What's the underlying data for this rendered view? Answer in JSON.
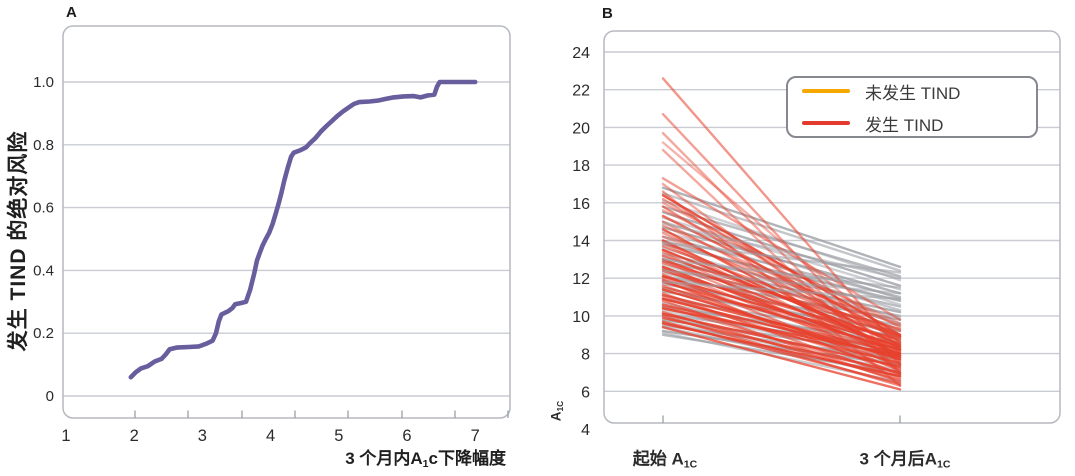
{
  "figure": {
    "panel_a_letter": "A",
    "panel_b_letter": "B"
  },
  "panel_a_text": {
    "ylabel": "发生 TIND 的绝对风险",
    "xlabel_parts": {
      "pre": "3 个月内A",
      "sub": "1",
      "post": "c下降幅度"
    }
  },
  "panel_b_text": {
    "ylabel_parts": {
      "pre": "A",
      "sub": "1C"
    },
    "cat1_parts": {
      "pre": "起始 A",
      "sub": "1C"
    },
    "cat2_parts": {
      "pre": "3 个月后A",
      "sub": "1C"
    }
  },
  "chart_data": [
    {
      "panel": "A",
      "type": "line",
      "title": "A",
      "xlabel": "3 个月内A1c下降幅度",
      "ylabel": "发生 TIND 的绝对风险",
      "xlim": [
        1,
        7.55
      ],
      "ylim": [
        0,
        1.12
      ],
      "x_ticks": [
        1,
        2,
        3,
        4,
        5,
        6,
        7
      ],
      "y_ticks": [
        0,
        0.2,
        0.4,
        0.6,
        0.8,
        1.0
      ],
      "grid": "horizontal",
      "line_color": "#685E9E",
      "points": [
        [
          1.95,
          0.06
        ],
        [
          2.02,
          0.075
        ],
        [
          2.1,
          0.088
        ],
        [
          2.2,
          0.095
        ],
        [
          2.3,
          0.11
        ],
        [
          2.4,
          0.118
        ],
        [
          2.46,
          0.132
        ],
        [
          2.52,
          0.149
        ],
        [
          2.62,
          0.154
        ],
        [
          2.8,
          0.156
        ],
        [
          2.95,
          0.158
        ],
        [
          3.05,
          0.166
        ],
        [
          3.15,
          0.176
        ],
        [
          3.2,
          0.2
        ],
        [
          3.24,
          0.238
        ],
        [
          3.28,
          0.26
        ],
        [
          3.38,
          0.27
        ],
        [
          3.44,
          0.28
        ],
        [
          3.48,
          0.292
        ],
        [
          3.56,
          0.296
        ],
        [
          3.64,
          0.3
        ],
        [
          3.7,
          0.338
        ],
        [
          3.76,
          0.39
        ],
        [
          3.8,
          0.432
        ],
        [
          3.84,
          0.455
        ],
        [
          3.88,
          0.478
        ],
        [
          3.93,
          0.5
        ],
        [
          3.98,
          0.52
        ],
        [
          4.03,
          0.548
        ],
        [
          4.08,
          0.585
        ],
        [
          4.12,
          0.615
        ],
        [
          4.16,
          0.648
        ],
        [
          4.2,
          0.685
        ],
        [
          4.25,
          0.725
        ],
        [
          4.3,
          0.762
        ],
        [
          4.34,
          0.775
        ],
        [
          4.44,
          0.783
        ],
        [
          4.52,
          0.792
        ],
        [
          4.58,
          0.806
        ],
        [
          4.66,
          0.822
        ],
        [
          4.74,
          0.843
        ],
        [
          4.82,
          0.86
        ],
        [
          4.9,
          0.876
        ],
        [
          4.98,
          0.892
        ],
        [
          5.06,
          0.906
        ],
        [
          5.14,
          0.918
        ],
        [
          5.22,
          0.93
        ],
        [
          5.3,
          0.936
        ],
        [
          5.45,
          0.938
        ],
        [
          5.58,
          0.941
        ],
        [
          5.68,
          0.946
        ],
        [
          5.8,
          0.951
        ],
        [
          5.95,
          0.954
        ],
        [
          6.1,
          0.955
        ],
        [
          6.2,
          0.951
        ],
        [
          6.3,
          0.957
        ],
        [
          6.4,
          0.96
        ],
        [
          6.44,
          0.985
        ],
        [
          6.48,
          1.0
        ],
        [
          7.0,
          1.0
        ]
      ]
    },
    {
      "panel": "B",
      "type": "line",
      "subtype": "slope-spaghetti",
      "ylabel": "A1C",
      "categories": [
        "起始 A1C",
        "3 个月后A1C"
      ],
      "ylim": [
        4,
        25
      ],
      "y_ticks": [
        4,
        6,
        8,
        10,
        12,
        14,
        16,
        18,
        20,
        22,
        24
      ],
      "grid": "horizontal",
      "legend": {
        "position": "upper right",
        "entries": [
          {
            "label": "未发生 TIND",
            "color": "#F6A800"
          },
          {
            "label": "发生 TIND",
            "color": "#E23B2E"
          }
        ]
      },
      "series": [
        {
          "name": "未发生 TIND",
          "plot_color": "#9CA0A6",
          "lines": [
            [
              16.8,
              12.6,
              0.8
            ],
            [
              16.5,
              12.4,
              0.6
            ],
            [
              16.1,
              11.9,
              0.5
            ],
            [
              15.8,
              12.1,
              0.7
            ],
            [
              15.5,
              11.6,
              0.8
            ],
            [
              15.2,
              11.4,
              0.5
            ],
            [
              15.0,
              10.9,
              0.6
            ],
            [
              14.7,
              11.2,
              0.8
            ],
            [
              14.5,
              10.6,
              0.5
            ],
            [
              14.2,
              11.0,
              0.7
            ],
            [
              14.0,
              10.3,
              0.6
            ],
            [
              13.8,
              10.8,
              0.8
            ],
            [
              13.6,
              9.9,
              0.5
            ],
            [
              13.3,
              10.5,
              0.7
            ],
            [
              13.1,
              9.6,
              0.6
            ],
            [
              12.9,
              10.2,
              0.8
            ],
            [
              12.7,
              9.3,
              0.5
            ],
            [
              12.5,
              10.0,
              0.7
            ],
            [
              12.3,
              9.0,
              0.6
            ],
            [
              12.1,
              9.8,
              0.8
            ],
            [
              11.9,
              8.8,
              0.55
            ],
            [
              11.7,
              9.5,
              0.7
            ],
            [
              11.5,
              8.5,
              0.6
            ],
            [
              11.3,
              9.2,
              0.8
            ],
            [
              11.1,
              8.2,
              0.5
            ],
            [
              10.9,
              8.9,
              0.7
            ],
            [
              10.7,
              8.0,
              0.6
            ],
            [
              10.5,
              8.6,
              0.8
            ],
            [
              10.3,
              7.7,
              0.5
            ],
            [
              10.1,
              8.3,
              0.7
            ],
            [
              10.0,
              7.4,
              0.6
            ],
            [
              9.8,
              8.0,
              0.8
            ],
            [
              9.7,
              7.1,
              0.5
            ],
            [
              9.5,
              7.7,
              0.7
            ],
            [
              9.4,
              6.8,
              0.6
            ],
            [
              9.2,
              7.4,
              0.8
            ],
            [
              9.1,
              6.5,
              0.55
            ],
            [
              9.0,
              7.0,
              0.7
            ]
          ],
          "overlay_lines": [
            [
              14.9,
              12.0,
              0.55
            ],
            [
              13.9,
              12.3,
              0.6
            ],
            [
              13.0,
              11.5,
              0.6
            ],
            [
              12.4,
              11.2,
              0.5
            ],
            [
              11.8,
              10.9,
              0.6
            ]
          ]
        },
        {
          "name": "发生 TIND",
          "plot_color": "#E7402C",
          "lines": [
            [
              22.6,
              8.2,
              0.55
            ],
            [
              20.7,
              7.4,
              0.5
            ],
            [
              19.7,
              7.0,
              0.45
            ],
            [
              19.2,
              8.6,
              0.4
            ],
            [
              18.8,
              6.9,
              0.45
            ],
            [
              17.3,
              9.8,
              0.5
            ],
            [
              17.0,
              7.6,
              0.45
            ],
            [
              16.6,
              6.3,
              0.5
            ],
            [
              16.4,
              9.0,
              0.85
            ],
            [
              16.2,
              8.6,
              0.5
            ],
            [
              16.0,
              9.4,
              0.45
            ],
            [
              15.8,
              8.2,
              0.6
            ],
            [
              15.6,
              9.6,
              0.4
            ],
            [
              15.3,
              8.9,
              0.75
            ],
            [
              15.0,
              8.4,
              0.5
            ],
            [
              14.8,
              9.2,
              0.45
            ],
            [
              14.6,
              7.9,
              0.8
            ],
            [
              14.4,
              8.8,
              0.5
            ],
            [
              14.2,
              9.5,
              0.4
            ],
            [
              14.0,
              8.1,
              0.85
            ],
            [
              13.9,
              7.6,
              0.5
            ],
            [
              13.7,
              9.0,
              0.6
            ],
            [
              13.5,
              8.5,
              0.9
            ],
            [
              13.4,
              7.2,
              0.5
            ],
            [
              13.2,
              8.9,
              0.7
            ],
            [
              13.0,
              8.3,
              0.85
            ],
            [
              12.9,
              7.8,
              0.5
            ],
            [
              12.8,
              9.3,
              0.6
            ],
            [
              12.6,
              8.0,
              0.9
            ],
            [
              12.5,
              7.5,
              0.5
            ],
            [
              12.4,
              8.7,
              0.75
            ],
            [
              12.2,
              7.1,
              0.6
            ],
            [
              12.1,
              8.4,
              0.9
            ],
            [
              12.0,
              7.9,
              0.5
            ],
            [
              11.9,
              6.9,
              0.7
            ],
            [
              11.8,
              8.2,
              0.85
            ],
            [
              11.6,
              7.4,
              0.6
            ],
            [
              11.5,
              8.8,
              0.5
            ],
            [
              11.4,
              7.7,
              0.9
            ],
            [
              11.2,
              6.7,
              0.6
            ],
            [
              11.1,
              8.0,
              0.8
            ],
            [
              11.0,
              7.2,
              0.5
            ],
            [
              10.9,
              7.8,
              0.9
            ],
            [
              10.8,
              6.5,
              0.6
            ],
            [
              10.6,
              7.5,
              0.8
            ],
            [
              10.5,
              6.9,
              0.5
            ],
            [
              10.4,
              7.9,
              0.9
            ],
            [
              10.2,
              6.6,
              0.7
            ],
            [
              10.1,
              7.3,
              0.85
            ],
            [
              10.0,
              6.3,
              0.6
            ],
            [
              9.9,
              7.0,
              0.8
            ],
            [
              9.7,
              6.4,
              0.7
            ],
            [
              9.6,
              6.8,
              0.9
            ],
            [
              9.4,
              6.1,
              0.75
            ]
          ]
        }
      ]
    }
  ],
  "style": {
    "grid_color": "#caccd4",
    "box_border_color": "#b5b9c0",
    "tick_mark_color": "#9aa0a8",
    "tick_text_color": "#2b2b2b"
  }
}
